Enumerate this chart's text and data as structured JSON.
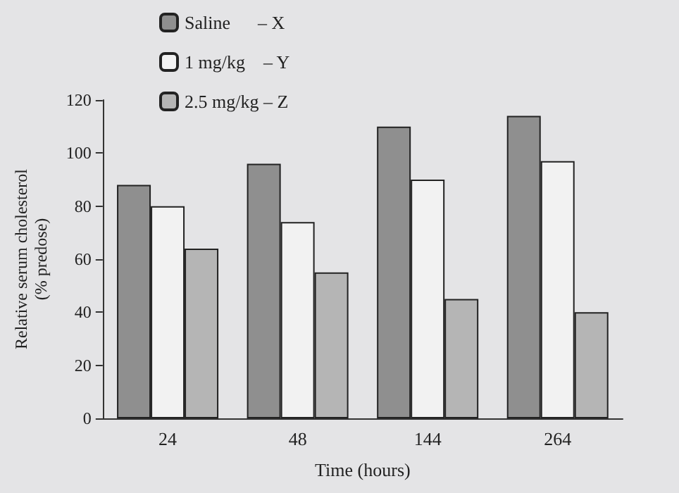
{
  "chart_data": {
    "type": "bar",
    "xlabel": "Time (hours)",
    "ylabel": "Relative serum cholesterol\n(% predose)",
    "categories": [
      "24",
      "48",
      "144",
      "264"
    ],
    "series": [
      {
        "name": "Saline      – X",
        "color": "#8f8f8f",
        "values": [
          88,
          96,
          110,
          114
        ]
      },
      {
        "name": "1 mg/kg    – Y",
        "color": "#f2f2f2",
        "values": [
          80,
          74,
          90,
          97
        ]
      },
      {
        "name": "2.5 mg/kg – Z",
        "color": "#b5b5b5",
        "values": [
          64,
          55,
          45,
          40
        ]
      }
    ],
    "ylim": [
      0,
      120
    ],
    "yticks": [
      0,
      20,
      40,
      60,
      80,
      100,
      120
    ],
    "grid": false,
    "legend": "top left"
  }
}
